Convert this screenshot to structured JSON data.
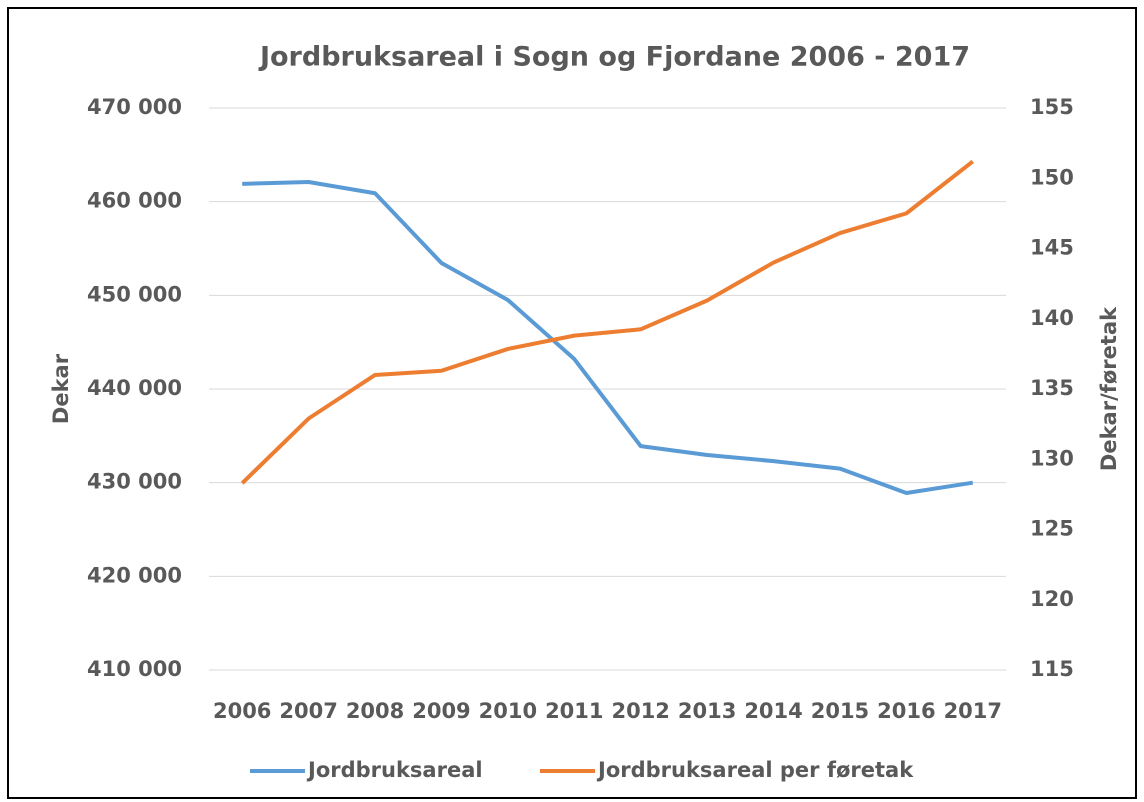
{
  "chart_data": {
    "type": "line",
    "title": "Jordbruksareal i Sogn og Fjordane 2006 - 2017",
    "ylabel": "Dekar",
    "y2label": "Dekar/føretak",
    "categories": [
      "2006",
      "2007",
      "2008",
      "2009",
      "2010",
      "2011",
      "2012",
      "2013",
      "2014",
      "2015",
      "2016",
      "2017"
    ],
    "series": [
      {
        "name": "Jordbruksareal",
        "color": "#5b9bd5",
        "axis": "y",
        "values": [
          461900,
          462100,
          460900,
          453450,
          449500,
          443200,
          433900,
          432950,
          432300,
          431500,
          428900,
          430000
        ]
      },
      {
        "name": "Jordbruksareal per føretak",
        "color": "#ed7d31",
        "axis": "y2",
        "values": [
          128.3,
          132.9,
          136.0,
          136.3,
          137.85,
          138.8,
          139.25,
          141.3,
          144.0,
          146.1,
          147.5,
          151.2
        ]
      }
    ],
    "ylim": [
      410000,
      470000
    ],
    "yticks": [
      {
        "value": 410000,
        "label": "410 000"
      },
      {
        "value": 420000,
        "label": "420 000"
      },
      {
        "value": 430000,
        "label": "430 000"
      },
      {
        "value": 440000,
        "label": "440 000"
      },
      {
        "value": 450000,
        "label": "450 000"
      },
      {
        "value": 460000,
        "label": "460 000"
      },
      {
        "value": 470000,
        "label": "470 000"
      }
    ],
    "y2lim": [
      115,
      155
    ],
    "y2ticks": [
      115,
      120,
      125,
      130,
      135,
      140,
      145,
      150,
      155
    ],
    "grid": true,
    "legend": "bottom"
  }
}
